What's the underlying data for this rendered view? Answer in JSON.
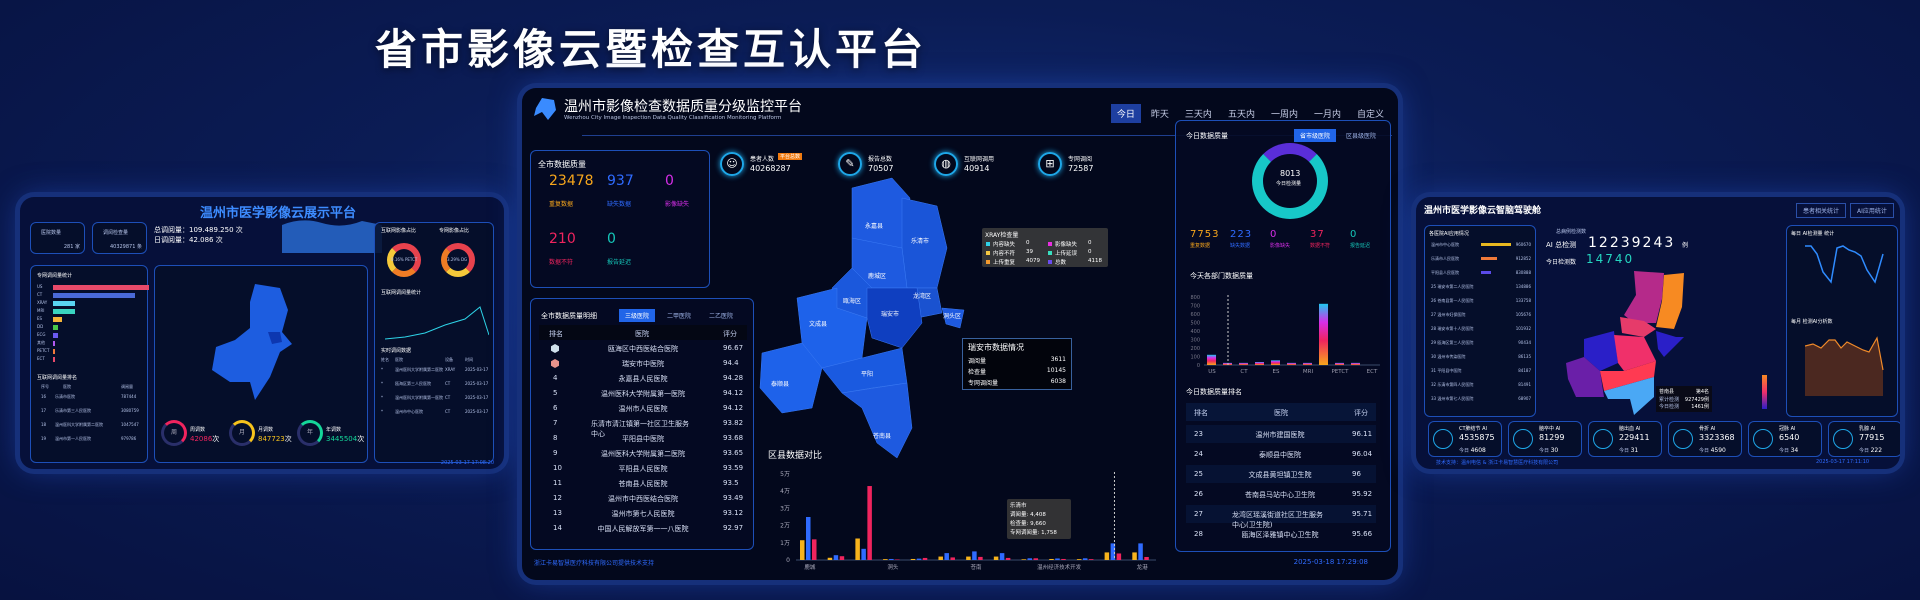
{
  "headline": "省市影像云暨检查互认平台",
  "center": {
    "title": "温州市影像检查数据质量分级监控平台",
    "subtitle": "Wenzhou City Image Inspection Data Quality Classification Monitoring Platform",
    "time_tabs": [
      "今日",
      "昨天",
      "三天内",
      "五天内",
      "一周内",
      "一月内",
      "自定义"
    ],
    "active_tab": "今日",
    "quality": {
      "title": "全市数据质量",
      "items": [
        {
          "value": "23478",
          "label": "重复数据",
          "color": "#f7a61c"
        },
        {
          "value": "937",
          "label": "缺失数据",
          "color": "#2f6bff"
        },
        {
          "value": "0",
          "label": "影像缺失",
          "color": "#d72ee8"
        },
        {
          "value": "210",
          "label": "数据不符",
          "color": "#f0245e"
        },
        {
          "value": "0",
          "label": "报告延迟",
          "color": "#15c7b9"
        }
      ]
    },
    "stats": [
      {
        "icon": "patients-icon",
        "label": "患者人数",
        "badge": "平台总数",
        "value": "40268287"
      },
      {
        "icon": "report-icon",
        "label": "报告总数",
        "value": "70507"
      },
      {
        "icon": "globe-icon",
        "label": "互联网调用",
        "value": "40914"
      },
      {
        "icon": "network-icon",
        "label": "专网调阅",
        "value": "72587"
      }
    ],
    "detail": {
      "title": "全市数据质量明细",
      "tabs": [
        "三级医院",
        "二甲医院",
        "二乙医院"
      ],
      "active_tab": "三级医院",
      "headers": [
        "排名",
        "医院",
        "评分"
      ],
      "rows": [
        {
          "rank": "",
          "medal": "silver",
          "name": "瓯海区中西医结合医院",
          "score": "96.67"
        },
        {
          "rank": "",
          "medal": "bronze",
          "name": "瑞安市中医院",
          "score": "94.4"
        },
        {
          "rank": "4",
          "name": "永嘉县人民医院",
          "score": "94.28"
        },
        {
          "rank": "5",
          "name": "温州医科大学附属第一医院",
          "score": "94.12"
        },
        {
          "rank": "6",
          "name": "温州市人民医院",
          "score": "94.12"
        },
        {
          "rank": "7",
          "name": "乐清市清江镇第一社区卫生服务中心",
          "score": "93.82"
        },
        {
          "rank": "8",
          "name": "平阳县中医院",
          "score": "93.68"
        },
        {
          "rank": "9",
          "name": "温州医科大学附属第二医院",
          "score": "93.65"
        },
        {
          "rank": "10",
          "name": "平阳县人民医院",
          "score": "93.59"
        },
        {
          "rank": "11",
          "name": "苍南县人民医院",
          "score": "93.5"
        },
        {
          "rank": "12",
          "name": "温州市中西医结合医院",
          "score": "93.49"
        },
        {
          "rank": "13",
          "name": "温州市第七人民医院",
          "score": "93.12"
        },
        {
          "rank": "14",
          "name": "中国人民解放军第一一八医院",
          "score": "92.97"
        }
      ]
    },
    "map": {
      "labels": [
        "永嘉县",
        "乐清市",
        "鹿城区",
        "龙湾区",
        "瓯海区",
        "瑞安市",
        "文成县",
        "泰顺县",
        "平阳",
        "苍南县",
        "洞头区"
      ],
      "tooltip": {
        "title": "瑞安市数据情况",
        "rows": [
          {
            "k": "调阅量",
            "v": "3611"
          },
          {
            "k": "检查量",
            "v": "10145"
          },
          {
            "k": "专网调阅量",
            "v": "6038"
          }
        ]
      }
    },
    "xray_tooltip": {
      "title": "XRAY检查量",
      "items": [
        {
          "k": "内容缺失",
          "v": "0",
          "color": "#2fd1e8"
        },
        {
          "k": "影像缺失",
          "v": "0",
          "color": "#e82ee0"
        },
        {
          "k": "内容不符",
          "v": "39",
          "color": "#f5c842"
        },
        {
          "k": "上传延误",
          "v": "0",
          "color": "#39e0c0"
        },
        {
          "k": "上传重复",
          "v": "4079",
          "color": "#f59a2e"
        },
        {
          "k": "总数",
          "v": "4118",
          "color": "#6a4cf0"
        }
      ]
    },
    "district_chart": {
      "title": "区县数据对比",
      "tooltip": {
        "title": "乐清市",
        "rows": [
          {
            "k": "调阅量",
            "v": "4,408"
          },
          {
            "k": "检查量",
            "v": "9,660"
          },
          {
            "k": "专网调阅量",
            "v": "1,758"
          }
        ]
      }
    },
    "today": {
      "title": "今日数据质量",
      "tabs": [
        "省市级医院",
        "区县级医院"
      ],
      "active_tab": "省市级医院",
      "donut_value": "8013",
      "donut_label": "今日检测量",
      "items": [
        {
          "value": "7753",
          "label": "重复数据",
          "color": "#f7a61c"
        },
        {
          "value": "223",
          "label": "缺失数据",
          "color": "#2f6bff"
        },
        {
          "value": "0",
          "label": "影像缺失",
          "color": "#d72ee8"
        },
        {
          "value": "37",
          "label": "数据不符",
          "color": "#f0245e"
        },
        {
          "value": "0",
          "label": "报告延迟",
          "color": "#15c7b9"
        }
      ]
    },
    "dept_chart": {
      "title": "今天各部门数据质量"
    },
    "ranking": {
      "title": "今日数据质量排名",
      "headers": [
        "排名",
        "医院",
        "评分"
      ],
      "rows": [
        {
          "rank": "23",
          "name": "温州市建国医院",
          "score": "96.11"
        },
        {
          "rank": "24",
          "name": "泰顺县中医院",
          "score": "96.04"
        },
        {
          "rank": "25",
          "name": "文成县黄坦镇卫生院",
          "score": "96"
        },
        {
          "rank": "26",
          "name": "苍南县马站中心卫生院",
          "score": "95.92"
        },
        {
          "rank": "27",
          "name": "龙湾区瑶溪街道社区卫生服务中心(卫生院)",
          "score": "95.71"
        },
        {
          "rank": "28",
          "name": "瓯海区泽雅镇中心卫生院",
          "score": "95.66"
        }
      ]
    },
    "footer_left": "浙江卡易智慧医疗科技有限公司提供技术支持",
    "footer_time": "2025-03-18 17:29:08"
  },
  "left": {
    "title": "温州市医学影像云展示平台",
    "kpis": [
      {
        "label": "医院数量",
        "value": "281 家"
      },
      {
        "label": "调阅检查量",
        "value": "40329871 条"
      }
    ],
    "totals": [
      {
        "label": "总调阅量：",
        "value": "109.489.250 次"
      },
      {
        "label": "日调阅量：",
        "value": "42.086 次"
      }
    ],
    "bar_title": "专网调阅量统计",
    "bar_cats": [
      "US",
      "CT",
      "XRAY",
      "MRI",
      "ES",
      "DD",
      "ECG",
      "其他",
      "PETCT",
      "ECT"
    ],
    "rank_title": "互联网调阅量排名",
    "rank_headers": [
      "序号",
      "医院",
      "调阅量"
    ],
    "rank_rows": [
      [
        "16",
        "乐清市医院",
        "787444"
      ],
      [
        "17",
        "乐清市第三人民医院",
        "3080759"
      ],
      [
        "18",
        "温州医科大学附属第二医院",
        "1047547"
      ],
      [
        "19",
        "温州市第一人民医院",
        "979786"
      ]
    ],
    "donut_titles": [
      "互联网影像占比",
      "专网影像占比"
    ],
    "donut_values": [
      "0.16% PETCT",
      "3.29% DG"
    ],
    "line_title": "互联网调阅量统计",
    "realtime_title": "实时调阅数据",
    "realtime_headers": [
      "姓名",
      "医院",
      "设备",
      "时间"
    ],
    "realtime_rows": [
      [
        "*",
        "温州医科大学附属第二医院",
        "XRAY",
        "2025-03-17"
      ],
      [
        "*",
        "瓯海区第三人民医院",
        "CT",
        "2025-03-17"
      ],
      [
        "*",
        "温州医科大学附属第一医院",
        "CT",
        "2025-03-17"
      ],
      [
        "*",
        "温州市中心医院",
        "CT",
        "2025-03-17"
      ]
    ],
    "rings": [
      {
        "ch": "周",
        "label": "周调数",
        "value": "42086",
        "unit": "次",
        "color": "#f0245e"
      },
      {
        "ch": "月",
        "label": "月调数",
        "value": "847723",
        "unit": "次",
        "color": "#f7c31c"
      },
      {
        "ch": "年",
        "label": "年调数",
        "value": "3445504",
        "unit": "次",
        "color": "#15d79a"
      }
    ],
    "footer_time": "2025-03-17 17:08:20"
  },
  "right": {
    "title": "温州市医学影像云智脑驾驶舱",
    "buttons": [
      "患者相关统计",
      "AI应用统计"
    ],
    "ai_title": "各医院AI应用情况",
    "ai_rows": [
      [
        "温州市中心医院",
        "960670"
      ],
      [
        "乐清市人民医院",
        "912852"
      ],
      [
        "平阳县人民医院",
        "830888"
      ],
      [
        "25 瑞安市第二人民医院",
        "134886"
      ],
      [
        "26 苍南县第一人民医院",
        "133758"
      ],
      [
        "27 温州市妇保医院",
        "105676"
      ],
      [
        "28 瑞安市第十人民医院",
        "101932"
      ],
      [
        "29 瓯海区第三人民医院",
        "90434"
      ],
      [
        "30 温州市传染医院",
        "86135"
      ],
      [
        "31 平阳县中医院",
        "84187"
      ],
      [
        "32 乐清市第四人民医院",
        "81491"
      ],
      [
        "33 温州市第七人民医院",
        "68907"
      ]
    ],
    "total_label": "总病例检测数",
    "ai_total_label": "AI 总检测",
    "ai_total": "12239243",
    "today_label": "今日检测数",
    "today_value": "14740",
    "unit": "例",
    "map_tooltip": {
      "title": "苍南县",
      "rank": "第4名",
      "rows": [
        [
          "累计检测",
          "927429例"
        ],
        [
          "今日检测",
          "1461例"
        ]
      ]
    },
    "daily_title": "每日 AI检测量 统计",
    "monthly_title": "每月 检测AI分析数",
    "tiles": [
      {
        "name": "CT肺结节 AI",
        "total": "4535875",
        "today": "4608"
      },
      {
        "name": "脑卒中 AI",
        "total": "81299",
        "today": "30"
      },
      {
        "name": "脑出血 AI",
        "total": "229411",
        "today": "31"
      },
      {
        "name": "骨折 AI",
        "total": "3323368",
        "today": "4590"
      },
      {
        "name": "冠脉 AI",
        "total": "6540",
        "today": "34"
      },
      {
        "name": "乳腺 AI",
        "total": "77915",
        "today": "222"
      }
    ],
    "today_prefix": "今日",
    "footer_left": "技术支持：温州电信 & 浙江卡易智慧医疗科技有限公司",
    "footer_time": "2025-03-17 17:11:10"
  },
  "chart_data": [
    {
      "type": "bar",
      "title": "区县数据对比",
      "categories": [
        "鹿城",
        "",
        "",
        "洞头",
        "",
        "",
        "苍南",
        "",
        "",
        "温州经济技术开发",
        "",
        "",
        "龙港"
      ],
      "ylim": [
        0,
        50000
      ],
      "yticks": [
        "0",
        "1万",
        "2万",
        "3万",
        "4万",
        "5万"
      ],
      "series": [
        {
          "name": "调阅量",
          "color": "#f7b31c",
          "values": [
            11500,
            1300,
            12500,
            500,
            600,
            2000,
            2000,
            2000,
            400,
            600,
            500,
            4408,
            4408
          ]
        },
        {
          "name": "检查量",
          "color": "#2f6bff",
          "values": [
            25000,
            2800,
            6500,
            600,
            800,
            4000,
            5000,
            4000,
            1000,
            900,
            1000,
            9660,
            9660
          ]
        },
        {
          "name": "专网调阅量",
          "color": "#f0245e",
          "values": [
            12000,
            2200,
            43000,
            300,
            1200,
            1500,
            1800,
            1200,
            1000,
            600,
            500,
            3800,
            1758
          ]
        }
      ]
    },
    {
      "type": "bar",
      "title": "今天各部门数据质量",
      "categories": [
        "US",
        "",
        "CT",
        "",
        "ES",
        "",
        "MRI",
        "",
        "PETCT",
        "",
        "ECT"
      ],
      "ylim": [
        0,
        800
      ],
      "yticks": [
        "0",
        "100",
        "200",
        "300",
        "400",
        "500",
        "600",
        "700",
        "800"
      ],
      "values": [
        120,
        25,
        25,
        35,
        55,
        25,
        25,
        720,
        25,
        25,
        0
      ]
    }
  ]
}
